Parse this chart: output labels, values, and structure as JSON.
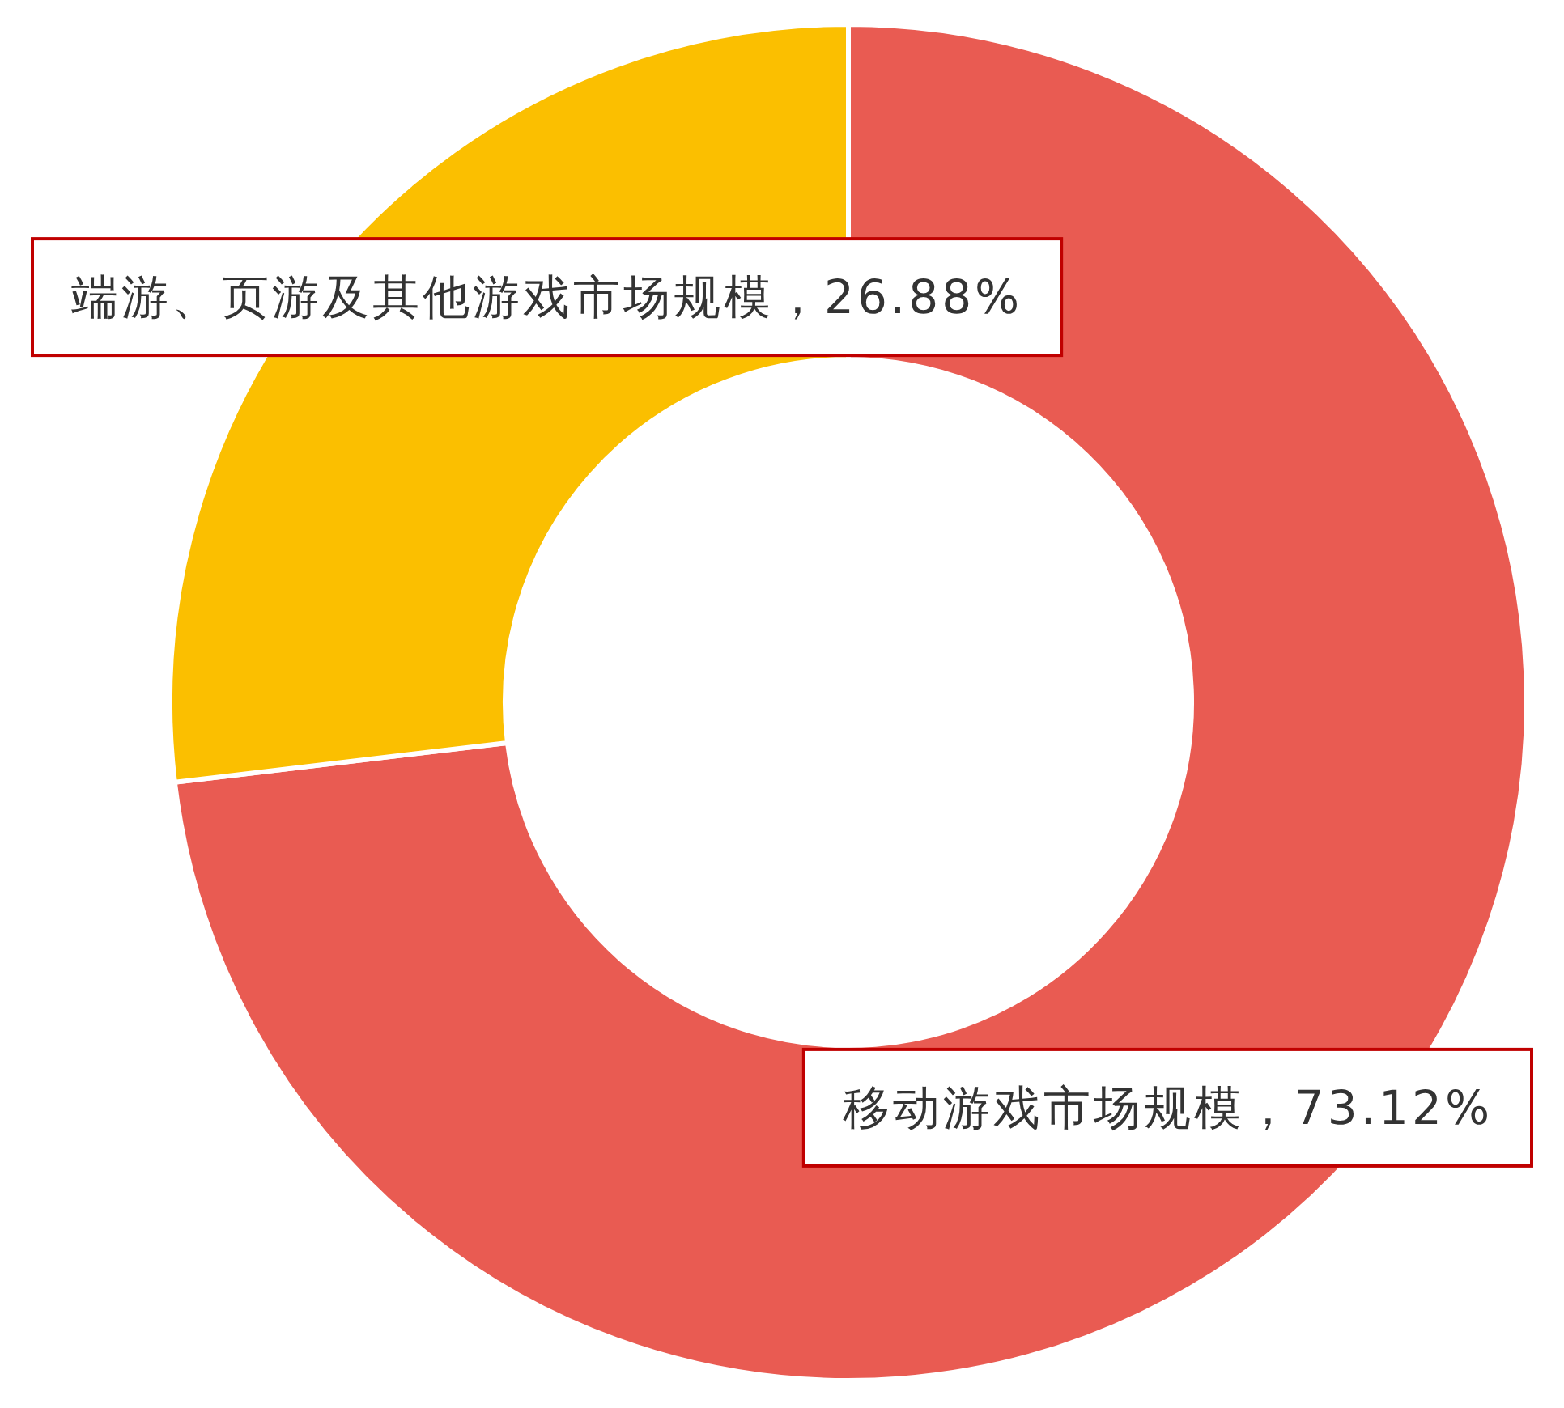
{
  "chart_data": {
    "type": "donut",
    "categories": [
      "移动游戏市场规模",
      "端游、页游及其他游戏市场规模"
    ],
    "values": [
      73.12,
      26.88
    ],
    "colors": [
      "#e95b52",
      "#fbbf00"
    ],
    "value_labels": [
      "，73.12%",
      "，26.88%"
    ]
  }
}
